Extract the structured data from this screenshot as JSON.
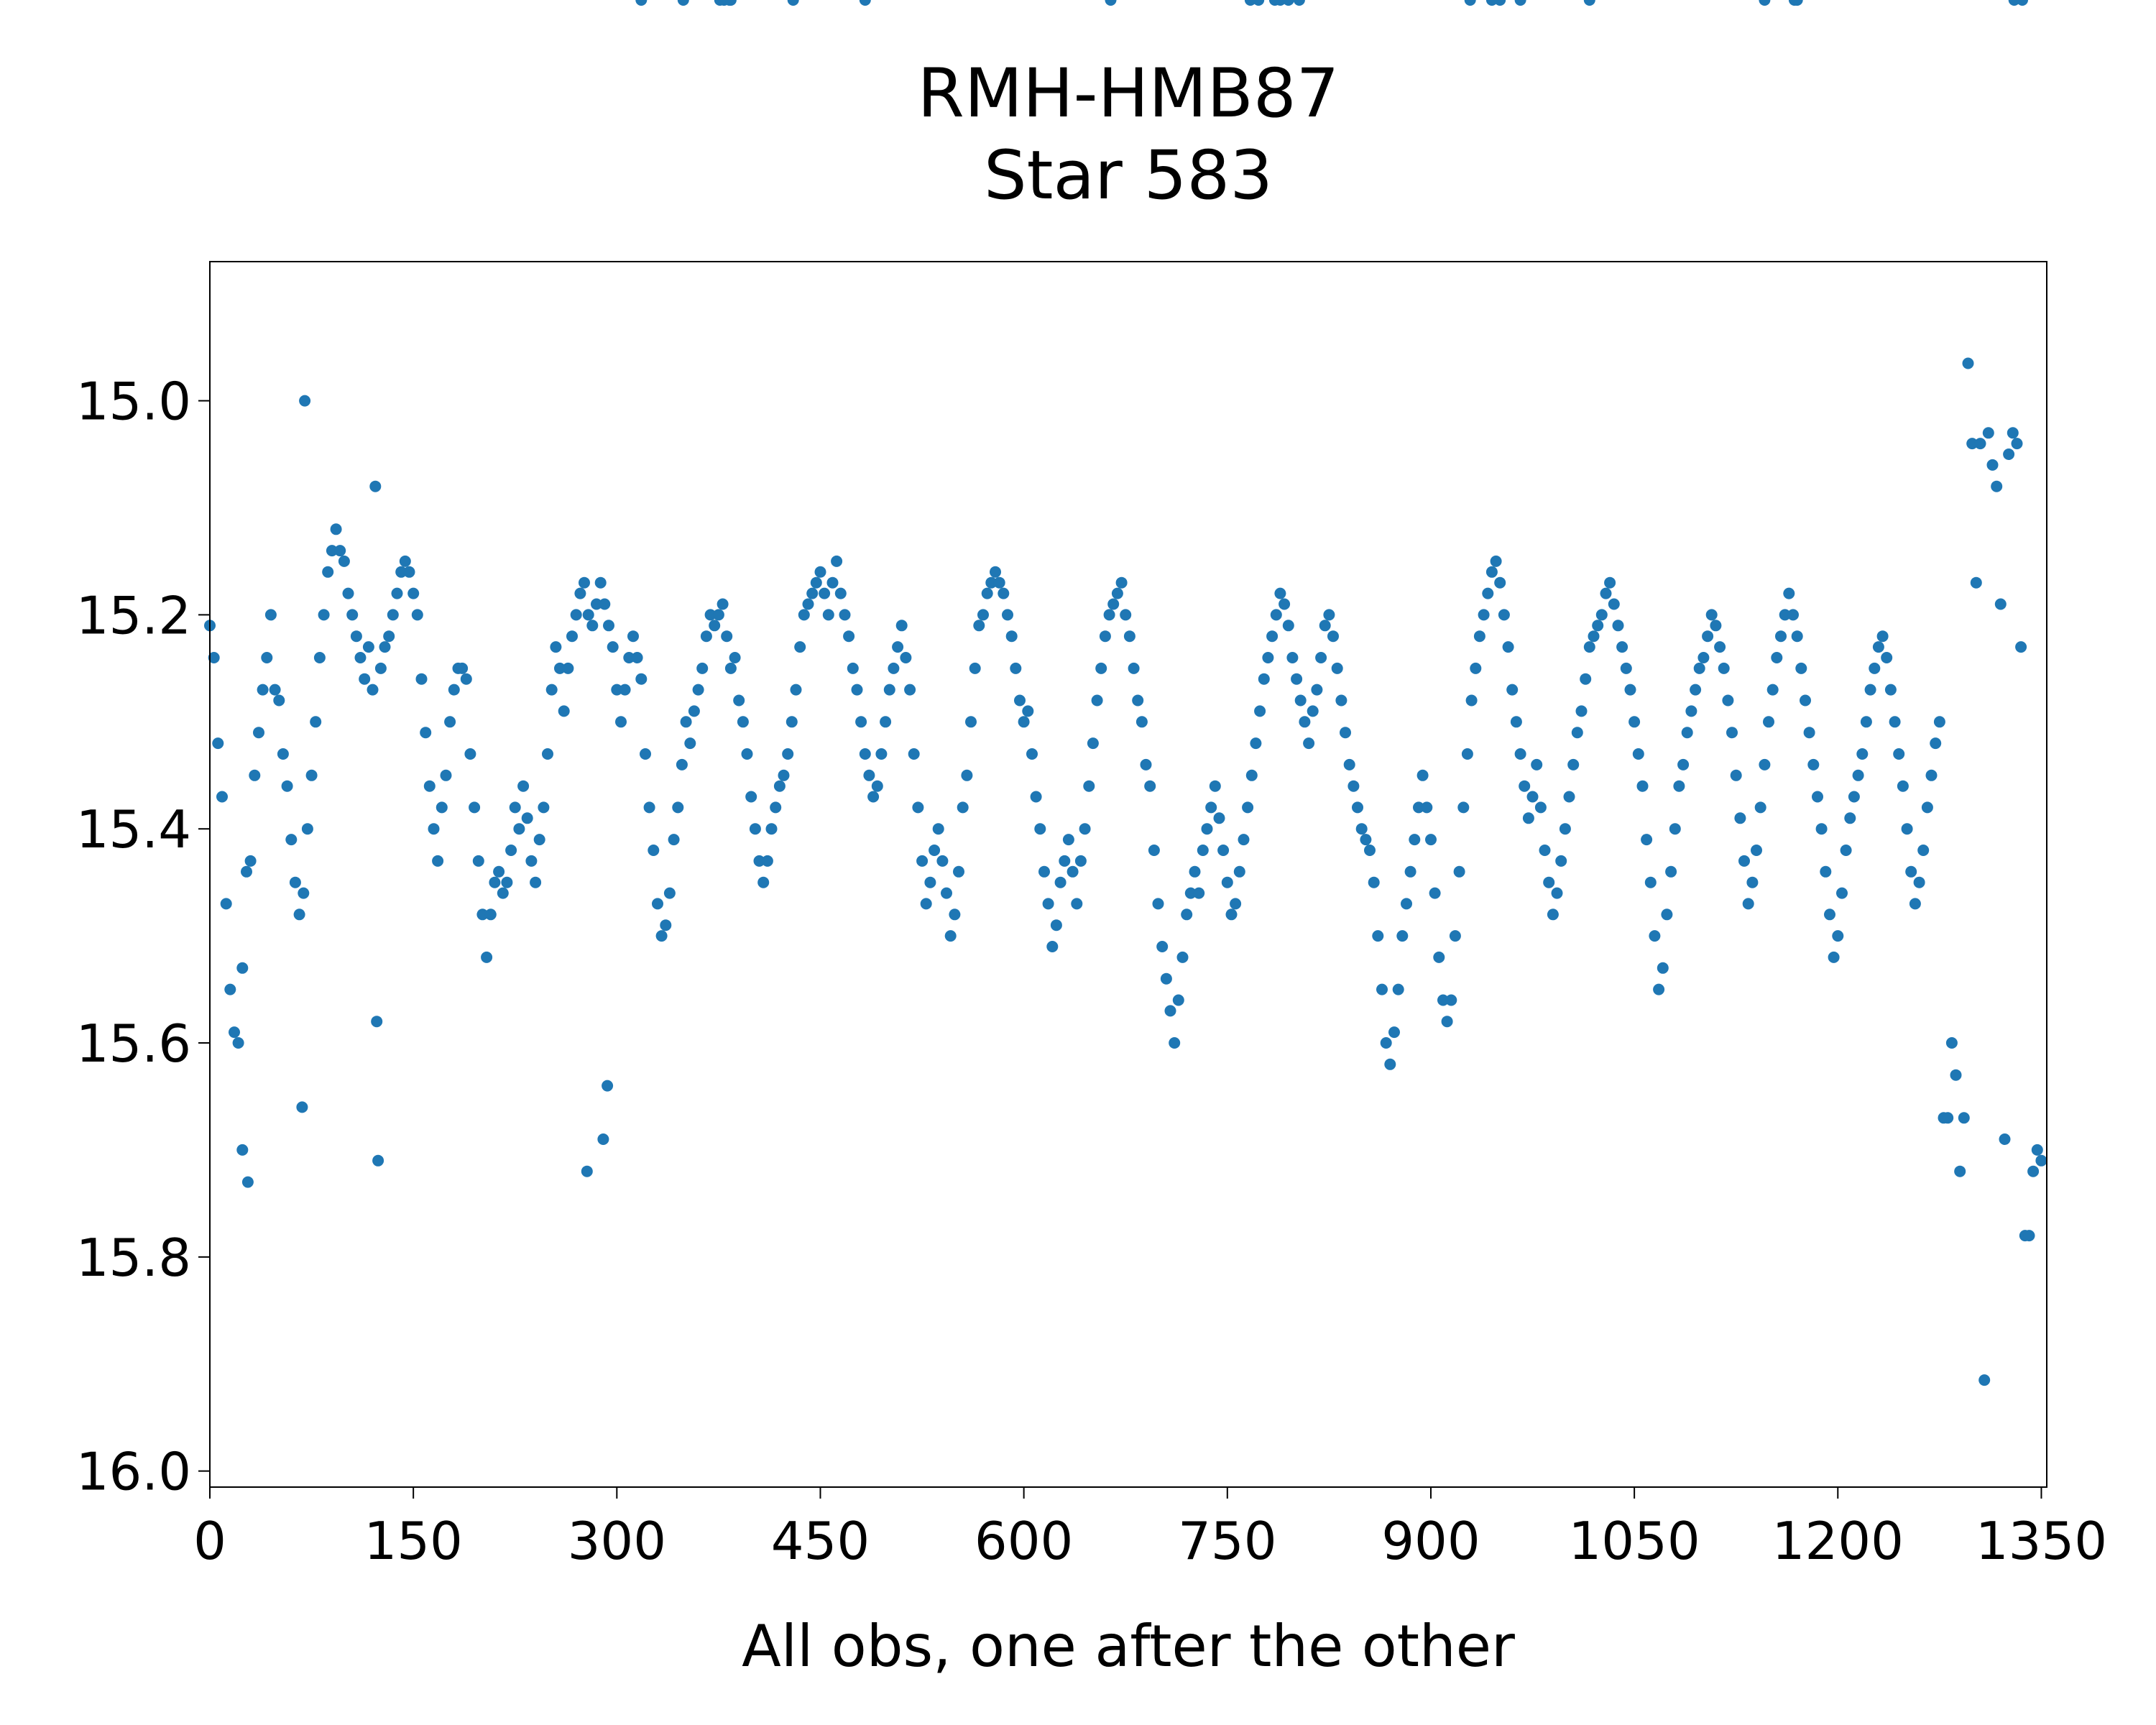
{
  "chart_data": {
    "type": "scatter",
    "title_lines": [
      "RMH-HMB87",
      "Star 583"
    ],
    "xlabel": "All obs, one after the other",
    "ylabel": "",
    "xlim": [
      0,
      1354
    ],
    "ylim": [
      16.015,
      14.87
    ],
    "y_inverted": true,
    "xticks": [
      0,
      150,
      300,
      450,
      600,
      750,
      900,
      1050,
      1200,
      1350
    ],
    "xtick_labels": [
      "0",
      "150",
      "300",
      "450",
      "600",
      "750",
      "900",
      "1050",
      "1200",
      "1350"
    ],
    "yticks": [
      15.0,
      15.2,
      15.4,
      15.6,
      15.8,
      16.0
    ],
    "ytick_labels": [
      "15.0",
      "15.2",
      "15.4",
      "15.6",
      "15.8",
      "16.0"
    ],
    "grid": false,
    "marker_color": "#1f77b4",
    "points_x": [
      0,
      3,
      6,
      9,
      12,
      15,
      18,
      21,
      24,
      27,
      30,
      33,
      36,
      39,
      42,
      45,
      48,
      51,
      54,
      57,
      60,
      63,
      66,
      69,
      72,
      75,
      78,
      81,
      84,
      87,
      90,
      93,
      96,
      99,
      102,
      105,
      108,
      111,
      114,
      117,
      120,
      123,
      126,
      129,
      132,
      135,
      138,
      141,
      144,
      147,
      150,
      153,
      156,
      159,
      162,
      165,
      168,
      171,
      174,
      177,
      180,
      183,
      186,
      189,
      192,
      195,
      198,
      201,
      204,
      207,
      210,
      213,
      216,
      219,
      222,
      225,
      228,
      231,
      234,
      237,
      240,
      243,
      246,
      249,
      252,
      255,
      258,
      261,
      264,
      267,
      270,
      273,
      276,
      279,
      282,
      285,
      288,
      291,
      294,
      297,
      300,
      303,
      306,
      309,
      312,
      315,
      318,
      321,
      324,
      327,
      330,
      333,
      336,
      339,
      342,
      345,
      348,
      351,
      354,
      357,
      360,
      363,
      366,
      369,
      372,
      375,
      378,
      381,
      384,
      387,
      390,
      393,
      396,
      399,
      402,
      405,
      408,
      411,
      414,
      417,
      420,
      423,
      426,
      429,
      432,
      435,
      438,
      441,
      444,
      447,
      450,
      453,
      456,
      459,
      462,
      465,
      468,
      471,
      474,
      477,
      480,
      483,
      486,
      489,
      492,
      495,
      498,
      501,
      504,
      507,
      510,
      513,
      516,
      519,
      522,
      525,
      528,
      531,
      534,
      537,
      540,
      543,
      546,
      549,
      552,
      555,
      558,
      561,
      564,
      567,
      570,
      573,
      576,
      579,
      582,
      585,
      588,
      591,
      594,
      597,
      600,
      603,
      606,
      609,
      612,
      615,
      618,
      621,
      624,
      627,
      630,
      633,
      636,
      639,
      642,
      645,
      648,
      651,
      654,
      657,
      660,
      663,
      666,
      669,
      672,
      675,
      678,
      681,
      684,
      687,
      690,
      693,
      696,
      699,
      702,
      705,
      708,
      711,
      714,
      717,
      720,
      723,
      726,
      729,
      732,
      735,
      738,
      741,
      744,
      747,
      750,
      753,
      756,
      759,
      762,
      765,
      768,
      771,
      774,
      777,
      780,
      783,
      786,
      789,
      792,
      795,
      798,
      801,
      804,
      807,
      810,
      813,
      816,
      819,
      822,
      825,
      828,
      831,
      834,
      837,
      840,
      843,
      846,
      849,
      852,
      855,
      858,
      861,
      864,
      867,
      870,
      873,
      876,
      879,
      882,
      885,
      888,
      891,
      894,
      897,
      900,
      903,
      906,
      909,
      912,
      915,
      918,
      921,
      924,
      927,
      930,
      933,
      936,
      939,
      942,
      945,
      948,
      951,
      954,
      957,
      960,
      963,
      966,
      969,
      972,
      975,
      978,
      981,
      984,
      987,
      990,
      993,
      996,
      999,
      1002,
      1005,
      1008,
      1011,
      1014,
      1017,
      1020,
      1023,
      1026,
      1029,
      1032,
      1035,
      1038,
      1041,
      1044,
      1047,
      1050,
      1053,
      1056,
      1059,
      1062,
      1065,
      1068,
      1071,
      1074,
      1077,
      1080,
      1083,
      1086,
      1089,
      1092,
      1095,
      1098,
      1101,
      1104,
      1107,
      1110,
      1113,
      1116,
      1119,
      1122,
      1125,
      1128,
      1131,
      1134,
      1137,
      1140,
      1143,
      1146,
      1149,
      1152,
      1155,
      1158,
      1161,
      1164,
      1167,
      1170,
      1173,
      1176,
      1179,
      1182,
      1185,
      1188,
      1191,
      1194,
      1197,
      1200,
      1203,
      1206,
      1209,
      1212,
      1215,
      1218,
      1221,
      1224,
      1227,
      1230,
      1233,
      1236,
      1239,
      1242,
      1245,
      1248,
      1251,
      1254,
      1257,
      1260,
      1263,
      1266,
      1269,
      1272,
      1275,
      1278,
      1281,
      1284,
      1287,
      1290,
      1293,
      1296,
      1299,
      1302,
      1305,
      1308,
      1311,
      1314,
      1317,
      1320,
      1323,
      1326,
      1329,
      1332,
      1335,
      1338,
      1341,
      1344,
      1347,
      1350,
      24,
      28,
      68,
      70,
      122,
      124,
      278,
      290,
      293,
      318,
      349,
      376,
      379,
      383,
      384,
      430,
      483,
      664,
      767,
      773,
      785,
      789,
      795,
      803,
      929,
      945,
      951,
      966,
      1017,
      1146,
      1168,
      1170,
      1330,
      1336
    ],
    "points_y": [
      15.21,
      15.24,
      15.32,
      15.37,
      15.47,
      15.55,
      15.59,
      15.6,
      15.53,
      15.44,
      15.43,
      15.35,
      15.31,
      15.27,
      15.24,
      15.2,
      15.27,
      15.28,
      15.33,
      15.36,
      15.41,
      15.45,
      15.48,
      15.46,
      15.4,
      15.35,
      15.3,
      15.24,
      15.2,
      15.16,
      15.14,
      15.12,
      15.14,
      15.15,
      15.18,
      15.2,
      15.22,
      15.24,
      15.26,
      15.23,
      15.27,
      15.58,
      15.25,
      15.23,
      15.22,
      15.2,
      15.18,
      15.16,
      15.15,
      15.16,
      15.18,
      15.2,
      15.26,
      15.31,
      15.36,
      15.4,
      15.43,
      15.38,
      15.35,
      15.3,
      15.27,
      15.25,
      15.25,
      15.26,
      15.33,
      15.38,
      15.43,
      15.48,
      15.52,
      15.48,
      15.45,
      15.44,
      15.46,
      15.45,
      15.42,
      15.38,
      15.4,
      15.36,
      15.39,
      15.43,
      15.45,
      15.41,
      15.38,
      15.33,
      15.27,
      15.23,
      15.25,
      15.29,
      15.25,
      15.22,
      15.2,
      15.18,
      15.17,
      15.2,
      15.21,
      15.19,
      15.17,
      15.19,
      15.21,
      15.23,
      15.27,
      15.3,
      15.27,
      15.24,
      15.22,
      15.24,
      15.26,
      15.33,
      15.38,
      15.42,
      15.47,
      15.5,
      15.49,
      15.46,
      15.41,
      15.38,
      15.34,
      15.3,
      15.32,
      15.29,
      15.27,
      15.25,
      15.22,
      15.2,
      15.21,
      15.2,
      15.19,
      15.22,
      15.25,
      15.24,
      15.28,
      15.3,
      15.33,
      15.37,
      15.4,
      15.43,
      15.45,
      15.43,
      15.4,
      15.38,
      15.36,
      15.35,
      15.33,
      15.3,
      15.27,
      15.23,
      15.2,
      15.19,
      15.18,
      15.17,
      15.16,
      15.18,
      15.2,
      15.17,
      15.15,
      15.18,
      15.2,
      15.22,
      15.25,
      15.27,
      15.3,
      15.33,
      15.35,
      15.37,
      15.36,
      15.33,
      15.3,
      15.27,
      15.25,
      15.23,
      15.21,
      15.24,
      15.27,
      15.33,
      15.38,
      15.43,
      15.47,
      15.45,
      15.42,
      15.4,
      15.43,
      15.46,
      15.5,
      15.48,
      15.44,
      15.38,
      15.35,
      15.3,
      15.25,
      15.21,
      15.2,
      15.18,
      15.17,
      15.16,
      15.17,
      15.18,
      15.2,
      15.22,
      15.25,
      15.28,
      15.3,
      15.29,
      15.33,
      15.37,
      15.4,
      15.44,
      15.47,
      15.51,
      15.49,
      15.45,
      15.43,
      15.41,
      15.44,
      15.47,
      15.43,
      15.4,
      15.36,
      15.32,
      15.28,
      15.25,
      15.22,
      15.2,
      15.19,
      15.18,
      15.17,
      15.2,
      15.22,
      15.25,
      15.28,
      15.3,
      15.34,
      15.36,
      15.42,
      15.47,
      15.51,
      15.54,
      15.57,
      15.6,
      15.56,
      15.52,
      15.48,
      15.46,
      15.44,
      15.46,
      15.42,
      15.4,
      15.38,
      15.36,
      15.39,
      15.42,
      15.45,
      15.48,
      15.47,
      15.44,
      15.41,
      15.38,
      15.35,
      15.32,
      15.29,
      15.26,
      15.24,
      15.22,
      15.2,
      15.18,
      15.19,
      15.21,
      15.24,
      15.26,
      15.28,
      15.3,
      15.32,
      15.29,
      15.27,
      15.24,
      15.21,
      15.2,
      15.22,
      15.25,
      15.28,
      15.31,
      15.34,
      15.36,
      15.38,
      15.4,
      15.41,
      15.42,
      15.45,
      15.5,
      15.55,
      15.6,
      15.62,
      15.59,
      15.55,
      15.5,
      15.47,
      15.44,
      15.41,
      15.38,
      15.35,
      15.38,
      15.41,
      15.46,
      15.52,
      15.56,
      15.58,
      15.56,
      15.5,
      15.44,
      15.38,
      15.33,
      15.28,
      15.25,
      15.22,
      15.2,
      15.18,
      15.16,
      15.15,
      15.17,
      15.2,
      15.23,
      15.27,
      15.3,
      15.33,
      15.36,
      15.39,
      15.37,
      15.34,
      15.38,
      15.42,
      15.45,
      15.48,
      15.46,
      15.43,
      15.4,
      15.37,
      15.34,
      15.31,
      15.29,
      15.26,
      15.23,
      15.22,
      15.21,
      15.2,
      15.18,
      15.17,
      15.19,
      15.21,
      15.23,
      15.25,
      15.27,
      15.3,
      15.33,
      15.36,
      15.41,
      15.45,
      15.5,
      15.55,
      15.53,
      15.48,
      15.44,
      15.4,
      15.36,
      15.34,
      15.31,
      15.29,
      15.27,
      15.25,
      15.24,
      15.22,
      15.2,
      15.21,
      15.23,
      15.25,
      15.28,
      15.31,
      15.35,
      15.39,
      15.43,
      15.47,
      15.45,
      15.42,
      15.38,
      15.34,
      15.3,
      15.27,
      15.24,
      15.22,
      15.2,
      15.18,
      15.2,
      15.22,
      15.25,
      15.28,
      15.31,
      15.34,
      15.37,
      15.4,
      15.44,
      15.48,
      15.52,
      15.5,
      15.46,
      15.42,
      15.39,
      15.37,
      15.35,
      15.33,
      15.3,
      15.27,
      15.25,
      15.23,
      15.22,
      15.24,
      15.27,
      15.3,
      15.33,
      15.36,
      15.4,
      15.44,
      15.47,
      15.45,
      15.42,
      15.38,
      15.35,
      15.32,
      15.3,
      15.67,
      15.67,
      15.6,
      15.63,
      15.72,
      15.67,
      14.965,
      15.04,
      15.17,
      15.04,
      15.915,
      15.03,
      15.06,
      15.08,
      15.19,
      15.69,
      15.05,
      15.03,
      15.04,
      15.23,
      15.78,
      15.78,
      15.72,
      15.7,
      15.71,
      15.7,
      15.73,
      15.66,
      15.0,
      15.08,
      15.71,
      15.72,
      15.69,
      15.64
    ],
    "x_label_color": "#000000"
  }
}
